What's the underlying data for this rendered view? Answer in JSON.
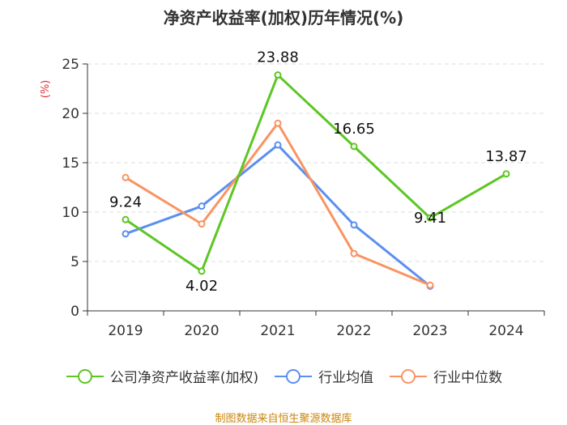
{
  "chart_data": {
    "type": "line",
    "title": "净资产收益率(加权)历年情况(%)",
    "ylabel": "(%)",
    "xlabel": "",
    "ylim": [
      0,
      25
    ],
    "yticks": [
      0,
      5,
      10,
      15,
      20,
      25
    ],
    "categories": [
      "2019",
      "2020",
      "2021",
      "2022",
      "2023",
      "2024"
    ],
    "grid": true,
    "legend_position": "bottom",
    "series": [
      {
        "name": "公司净资产收益率(加权)",
        "color": "#5dc624",
        "values": [
          9.24,
          4.02,
          23.88,
          16.65,
          9.41,
          13.87
        ],
        "labels": [
          "9.24",
          "4.02",
          "23.88",
          "16.65",
          "9.41",
          "13.87"
        ]
      },
      {
        "name": "行业均值",
        "color": "#5b8ff0",
        "values": [
          7.8,
          10.6,
          16.8,
          8.7,
          2.5,
          null
        ],
        "labels": []
      },
      {
        "name": "行业中位数",
        "color": "#f99462",
        "values": [
          13.5,
          8.8,
          19.0,
          5.8,
          2.6,
          null
        ],
        "labels": []
      }
    ]
  },
  "source": "制图数据来自恒生聚源数据库"
}
